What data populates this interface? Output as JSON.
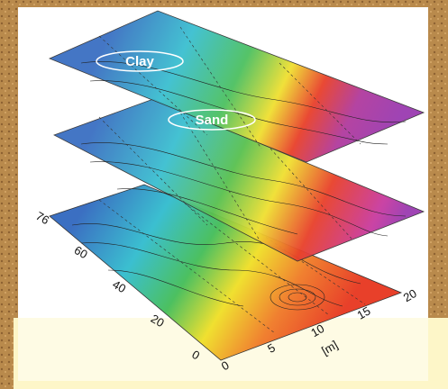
{
  "layers": {
    "top_labels": [
      "Clay",
      "Sand"
    ]
  },
  "axes": {
    "left_ticks": [
      "0",
      "20",
      "40",
      "60",
      "76"
    ],
    "bottom_ticks": [
      "0",
      "5",
      "10",
      "15",
      "20"
    ],
    "unit": "[m]"
  }
}
